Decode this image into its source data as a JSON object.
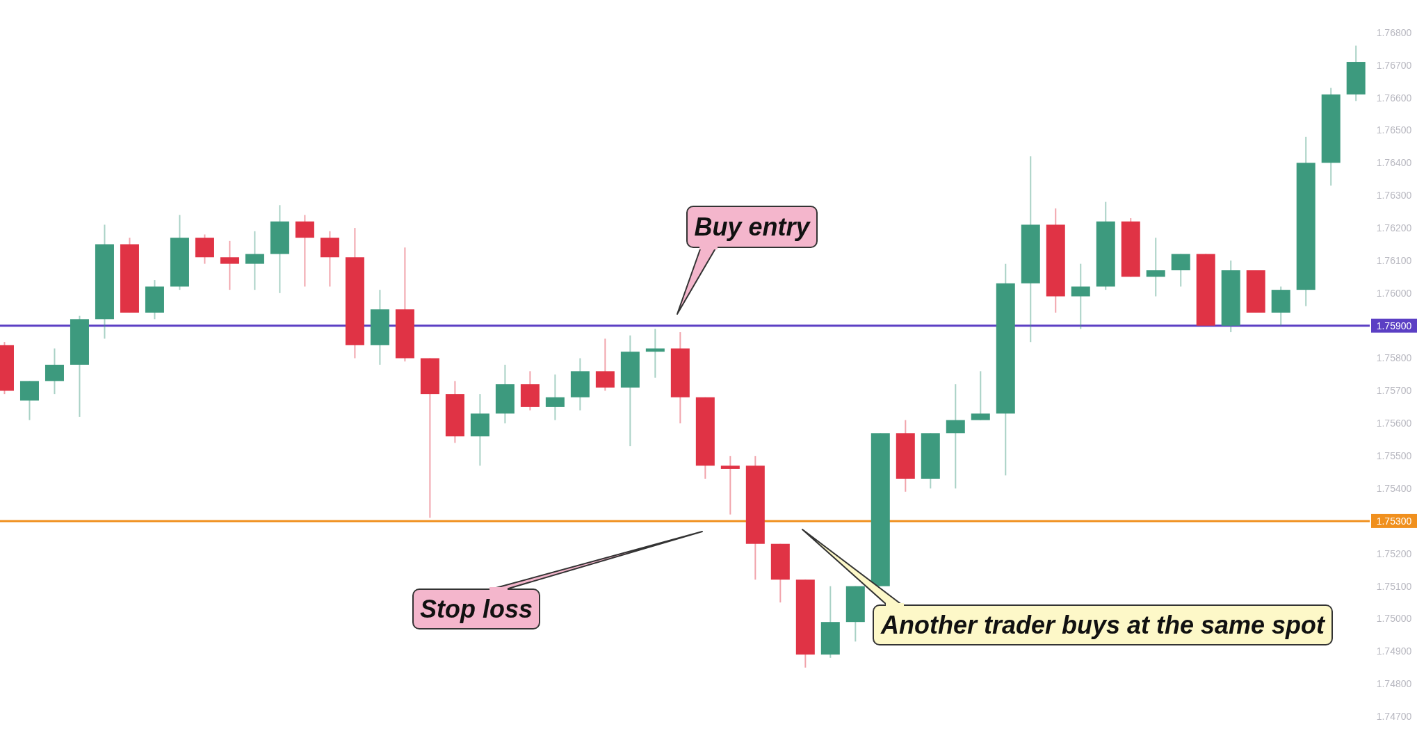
{
  "chart_data": {
    "type": "candlestick",
    "categories": [
      null,
      null,
      null,
      null,
      null,
      null,
      null,
      null,
      null,
      null,
      null,
      null,
      null,
      null,
      null,
      null,
      null,
      null,
      null,
      null,
      null,
      null,
      null,
      null,
      null,
      null,
      null,
      null,
      null,
      null,
      null,
      null,
      null,
      null,
      null,
      null,
      null,
      null,
      null,
      null,
      null,
      null,
      null,
      null,
      null,
      null,
      null,
      null,
      null,
      null,
      null,
      null,
      null,
      null,
      null
    ],
    "ohlc": [
      [
        1.7584,
        1.7585,
        1.7569,
        1.757
      ],
      [
        1.7567,
        1.7573,
        1.7561,
        1.7573
      ],
      [
        1.7573,
        1.7583,
        1.7569,
        1.7578
      ],
      [
        1.7578,
        1.7593,
        1.7562,
        1.7592
      ],
      [
        1.7592,
        1.7621,
        1.7586,
        1.7615
      ],
      [
        1.7615,
        1.7617,
        1.7594,
        1.7594
      ],
      [
        1.7594,
        1.7604,
        1.7592,
        1.7602
      ],
      [
        1.7602,
        1.7624,
        1.7601,
        1.7617
      ],
      [
        1.7617,
        1.7618,
        1.7609,
        1.7611
      ],
      [
        1.7611,
        1.7616,
        1.7601,
        1.7609
      ],
      [
        1.7609,
        1.7619,
        1.7601,
        1.7612
      ],
      [
        1.7612,
        1.7627,
        1.76,
        1.7622
      ],
      [
        1.7622,
        1.7624,
        1.7602,
        1.7617
      ],
      [
        1.7617,
        1.7619,
        1.7602,
        1.7611
      ],
      [
        1.7611,
        1.762,
        1.758,
        1.7584
      ],
      [
        1.7584,
        1.7601,
        1.7578,
        1.7595
      ],
      [
        1.7595,
        1.7614,
        1.7579,
        1.758
      ],
      [
        1.758,
        1.758,
        1.7531,
        1.7569
      ],
      [
        1.7569,
        1.7573,
        1.7554,
        1.7556
      ],
      [
        1.7556,
        1.7569,
        1.7547,
        1.7563
      ],
      [
        1.7563,
        1.7578,
        1.756,
        1.7572
      ],
      [
        1.7572,
        1.7576,
        1.7564,
        1.7565
      ],
      [
        1.7565,
        1.7575,
        1.7561,
        1.7568
      ],
      [
        1.7568,
        1.758,
        1.7564,
        1.7576
      ],
      [
        1.7576,
        1.7586,
        1.757,
        1.7571
      ],
      [
        1.7571,
        1.7587,
        1.7553,
        1.7582
      ],
      [
        1.7582,
        1.7589,
        1.7574,
        1.7583
      ],
      [
        1.7583,
        1.7588,
        1.756,
        1.7568
      ],
      [
        1.7568,
        1.7568,
        1.7543,
        1.7547
      ],
      [
        1.7547,
        1.755,
        1.7532,
        1.7546
      ],
      [
        1.7547,
        1.755,
        1.7512,
        1.7523
      ],
      [
        1.7523,
        1.7523,
        1.7505,
        1.7512
      ],
      [
        1.7512,
        1.7512,
        1.7485,
        1.7489
      ],
      [
        1.7489,
        1.751,
        1.7488,
        1.7499
      ],
      [
        1.7499,
        1.751,
        1.7493,
        1.751
      ],
      [
        1.751,
        1.7557,
        1.751,
        1.7557
      ],
      [
        1.7557,
        1.7561,
        1.7539,
        1.7543
      ],
      [
        1.7543,
        1.7557,
        1.754,
        1.7557
      ],
      [
        1.7557,
        1.7572,
        1.754,
        1.7561
      ],
      [
        1.7561,
        1.7576,
        1.7561,
        1.7563
      ],
      [
        1.7563,
        1.7609,
        1.7544,
        1.7603
      ],
      [
        1.7603,
        1.7642,
        1.7585,
        1.7621
      ],
      [
        1.7621,
        1.7626,
        1.7594,
        1.7599
      ],
      [
        1.7599,
        1.7609,
        1.7589,
        1.7602
      ],
      [
        1.7602,
        1.7628,
        1.7601,
        1.7622
      ],
      [
        1.7622,
        1.7623,
        1.7605,
        1.7605
      ],
      [
        1.7605,
        1.7617,
        1.7599,
        1.7607
      ],
      [
        1.7607,
        1.7612,
        1.7602,
        1.7612
      ],
      [
        1.7612,
        1.7612,
        1.759,
        1.759
      ],
      [
        1.759,
        1.761,
        1.7588,
        1.7607
      ],
      [
        1.7607,
        1.7607,
        1.7594,
        1.7594
      ],
      [
        1.7594,
        1.7602,
        1.759,
        1.7601
      ],
      [
        1.7601,
        1.7648,
        1.7596,
        1.764
      ],
      [
        1.764,
        1.7663,
        1.7633,
        1.7661
      ],
      [
        1.7661,
        1.7676,
        1.7659,
        1.7671
      ]
    ],
    "colors": [
      "#e03345",
      "#3d9a7e",
      "#3d9a7e",
      "#3d9a7e",
      "#3d9a7e",
      "#e03345",
      "#3d9a7e",
      "#3d9a7e",
      "#e03345",
      "#e03345",
      "#3d9a7e",
      "#3d9a7e",
      "#e03345",
      "#e03345",
      "#e03345",
      "#3d9a7e",
      "#e03345",
      "#e03345",
      "#e03345",
      "#3d9a7e",
      "#3d9a7e",
      "#e03345",
      "#3d9a7e",
      "#3d9a7e",
      "#e03345",
      "#3d9a7e",
      "#3d9a7e",
      "#e03345",
      "#e03345",
      "#e03345",
      "#e03345",
      "#e03345",
      "#e03345",
      "#3d9a7e",
      "#3d9a7e",
      "#3d9a7e",
      "#e03345",
      "#3d9a7e",
      "#3d9a7e",
      "#3d9a7e",
      "#3d9a7e",
      "#3d9a7e",
      "#e03345",
      "#3d9a7e",
      "#3d9a7e",
      "#e03345",
      "#3d9a7e",
      "#3d9a7e",
      "#e03345",
      "#3d9a7e",
      "#e03345",
      "#3d9a7e",
      "#3d9a7e",
      "#3d9a7e",
      "#3d9a7e"
    ],
    "ylim": [
      1.746,
      1.769
    ],
    "yticks": [
      {
        "value": 1.747,
        "label": "1.74700"
      },
      {
        "value": 1.748,
        "label": "1.74800"
      },
      {
        "value": 1.749,
        "label": "1.74900"
      },
      {
        "value": 1.75,
        "label": "1.75000"
      },
      {
        "value": 1.751,
        "label": "1.75100"
      },
      {
        "value": 1.752,
        "label": "1.75200"
      },
      {
        "value": 1.754,
        "label": "1.75400"
      },
      {
        "value": 1.755,
        "label": "1.75500"
      },
      {
        "value": 1.756,
        "label": "1.75600"
      },
      {
        "value": 1.757,
        "label": "1.75700"
      },
      {
        "value": 1.758,
        "label": "1.75800"
      },
      {
        "value": 1.76,
        "label": "1.76000"
      },
      {
        "value": 1.761,
        "label": "1.76100"
      },
      {
        "value": 1.762,
        "label": "1.76200"
      },
      {
        "value": 1.763,
        "label": "1.76300"
      },
      {
        "value": 1.764,
        "label": "1.76400"
      },
      {
        "value": 1.765,
        "label": "1.76500"
      },
      {
        "value": 1.766,
        "label": "1.76600"
      },
      {
        "value": 1.767,
        "label": "1.76700"
      },
      {
        "value": 1.768,
        "label": "1.76800"
      }
    ],
    "tick_labels": "y",
    "grid": false,
    "ref_lines": [
      {
        "axis": "y",
        "value": 1.759,
        "label": "1.75900",
        "color": "#5b3fc4"
      },
      {
        "axis": "y",
        "value": 1.753,
        "label": "1.75300",
        "color": "#f0901e"
      }
    ],
    "annotations": [
      "Buy entry",
      "Stop loss",
      "Another trader buys at the same spot"
    ]
  }
}
